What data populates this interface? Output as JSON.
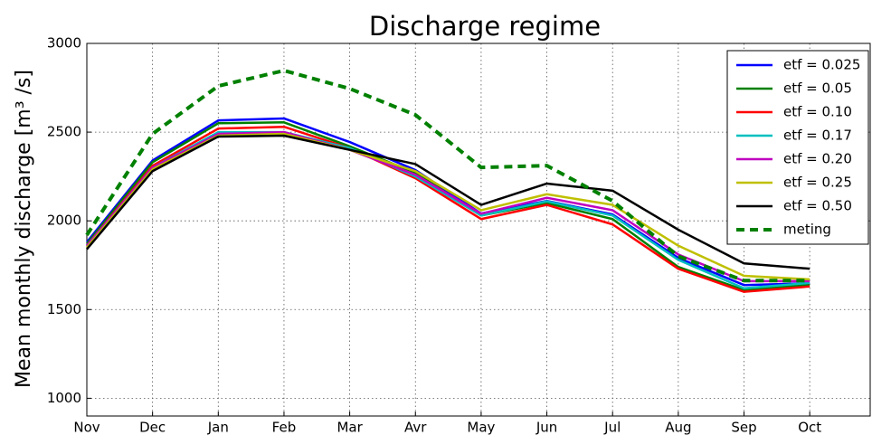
{
  "chart_data": {
    "type": "line",
    "title": "Discharge regime",
    "y_label": "Mean monthly discharge [m³ /s]",
    "categories": [
      "Nov",
      "Dec",
      "Jan",
      "Feb",
      "Mar",
      "Avr",
      "May",
      "Jun",
      "Jul",
      "Aug",
      "Sep",
      "Oct"
    ],
    "ylim": [
      900,
      3000
    ],
    "yticks": [
      1000,
      1500,
      2000,
      2500,
      3000
    ],
    "grid": true,
    "legend": "upper right",
    "series": [
      {
        "name": "etf = 0.025",
        "color": "#0000ff",
        "values": [
          1880,
          2340,
          2566,
          2577,
          2444,
          2286,
          2041,
          2112,
          2036,
          1791,
          1638,
          1648
        ]
      },
      {
        "name": "etf = 0.05",
        "color": "#008000",
        "values": [
          1870,
          2330,
          2550,
          2555,
          2420,
          2270,
          2030,
          2100,
          2010,
          1740,
          1610,
          1640
        ]
      },
      {
        "name": "etf = 0.10",
        "color": "#ff0000",
        "values": [
          1860,
          2310,
          2520,
          2530,
          2410,
          2240,
          2010,
          2090,
          1980,
          1730,
          1600,
          1630
        ]
      },
      {
        "name": "etf = 0.17",
        "color": "#00bfbf",
        "values": [
          1860,
          2300,
          2500,
          2500,
          2410,
          2250,
          2030,
          2110,
          2030,
          1780,
          1620,
          1650
        ]
      },
      {
        "name": "etf = 0.20",
        "color": "#bf00bf",
        "values": [
          1860,
          2300,
          2490,
          2500,
          2400,
          2260,
          2040,
          2130,
          2060,
          1810,
          1660,
          1660
        ]
      },
      {
        "name": "etf = 0.25",
        "color": "#bfbf00",
        "values": [
          1850,
          2290,
          2480,
          2490,
          2400,
          2280,
          2060,
          2150,
          2090,
          1860,
          1690,
          1670
        ]
      },
      {
        "name": "etf = 0.50",
        "color": "#000000",
        "values": [
          1840,
          2280,
          2475,
          2480,
          2400,
          2320,
          2090,
          2210,
          2170,
          1950,
          1760,
          1730
        ]
      },
      {
        "name": "meting",
        "color": "#008000",
        "linestyle": "dashed",
        "values": [
          1920,
          2490,
          2760,
          2847,
          2745,
          2597,
          2301,
          2311,
          2112,
          1800,
          1663,
          1663
        ]
      }
    ]
  }
}
